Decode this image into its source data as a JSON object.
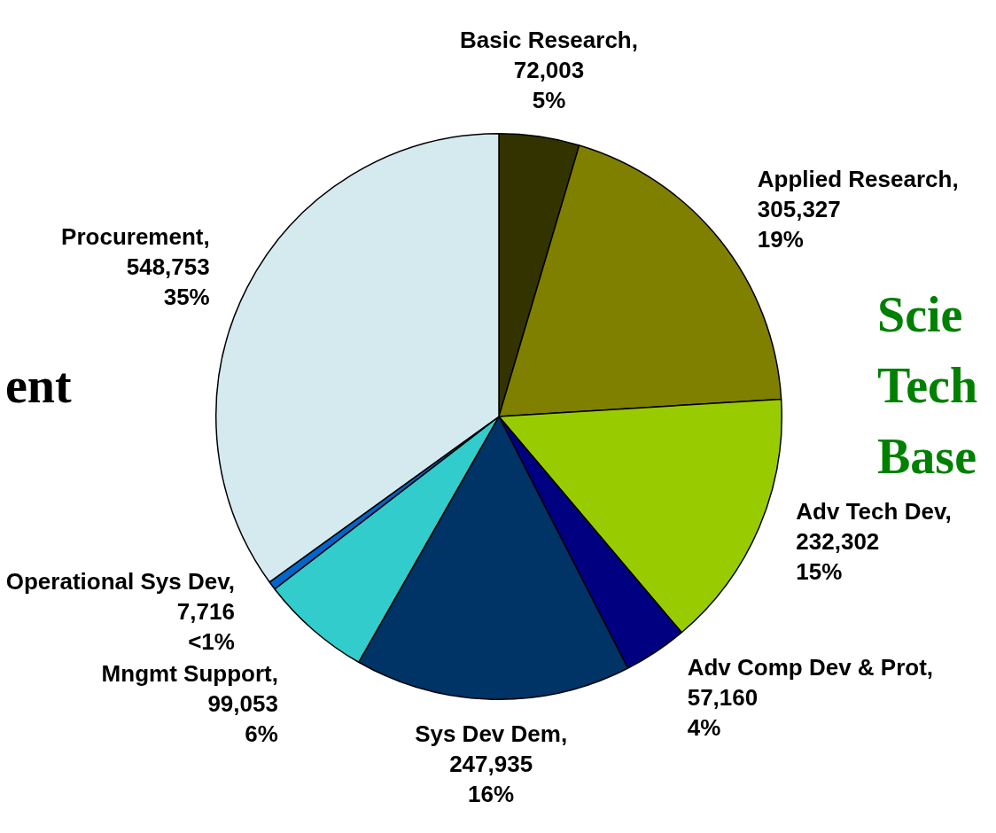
{
  "chart_data": {
    "type": "pie",
    "categories": [
      "Basic Research",
      "Applied Research",
      "Adv Tech Dev",
      "Adv Comp Dev & Prot",
      "Sys Dev Dem",
      "Mngmt Support",
      "Operational Sys Dev",
      "Procurement"
    ],
    "values": [
      72003,
      305327,
      232302,
      57160,
      247935,
      99053,
      7716,
      548753
    ],
    "value_labels": [
      ",\n72,003\n5%",
      ",\n305,327\n19%",
      ",\n232,302\n15%",
      ",\n57,160\n4%",
      ",\n247,935\n16%",
      ",\n99,053\n6%",
      ",\n7,716\n<1%",
      ",\n548,753\n35%"
    ],
    "colors": [
      "#333300",
      "#808000",
      "#99cc00",
      "#000080",
      "#003366",
      "#33cccc",
      "#0066cc",
      "#d4eaee"
    ],
    "annotations": [
      "ent",
      "Scie\nTech\nBase"
    ],
    "legend": false
  }
}
